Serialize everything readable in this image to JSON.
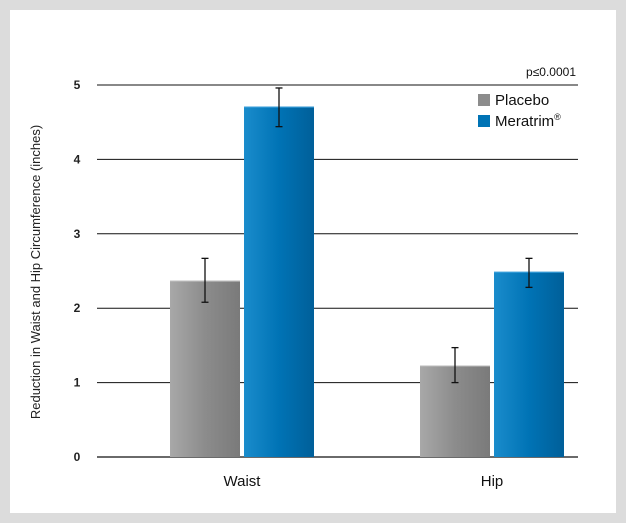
{
  "chart_data": {
    "type": "bar",
    "categories": [
      "Waist",
      "Hip"
    ],
    "series": [
      {
        "name": "Placebo",
        "values": [
          2.37,
          1.23
        ],
        "error_low": [
          2.08,
          1.0
        ],
        "error_high": [
          2.67,
          1.47
        ],
        "color": "#8f8f8f"
      },
      {
        "name": "Meratrim",
        "legend_suffix": "®",
        "values": [
          4.71,
          2.49
        ],
        "error_low": [
          4.44,
          2.28
        ],
        "error_high": [
          4.96,
          2.67
        ],
        "color": "#0071b3"
      }
    ],
    "ylabel": "Reduction in Waist and Hip Circumference (inches)",
    "ylim": [
      0,
      5
    ],
    "yticks": [
      0,
      1,
      2,
      3,
      4,
      5
    ],
    "grid": true,
    "legend_position": "top-right",
    "annotation": "p≤0.0001"
  }
}
